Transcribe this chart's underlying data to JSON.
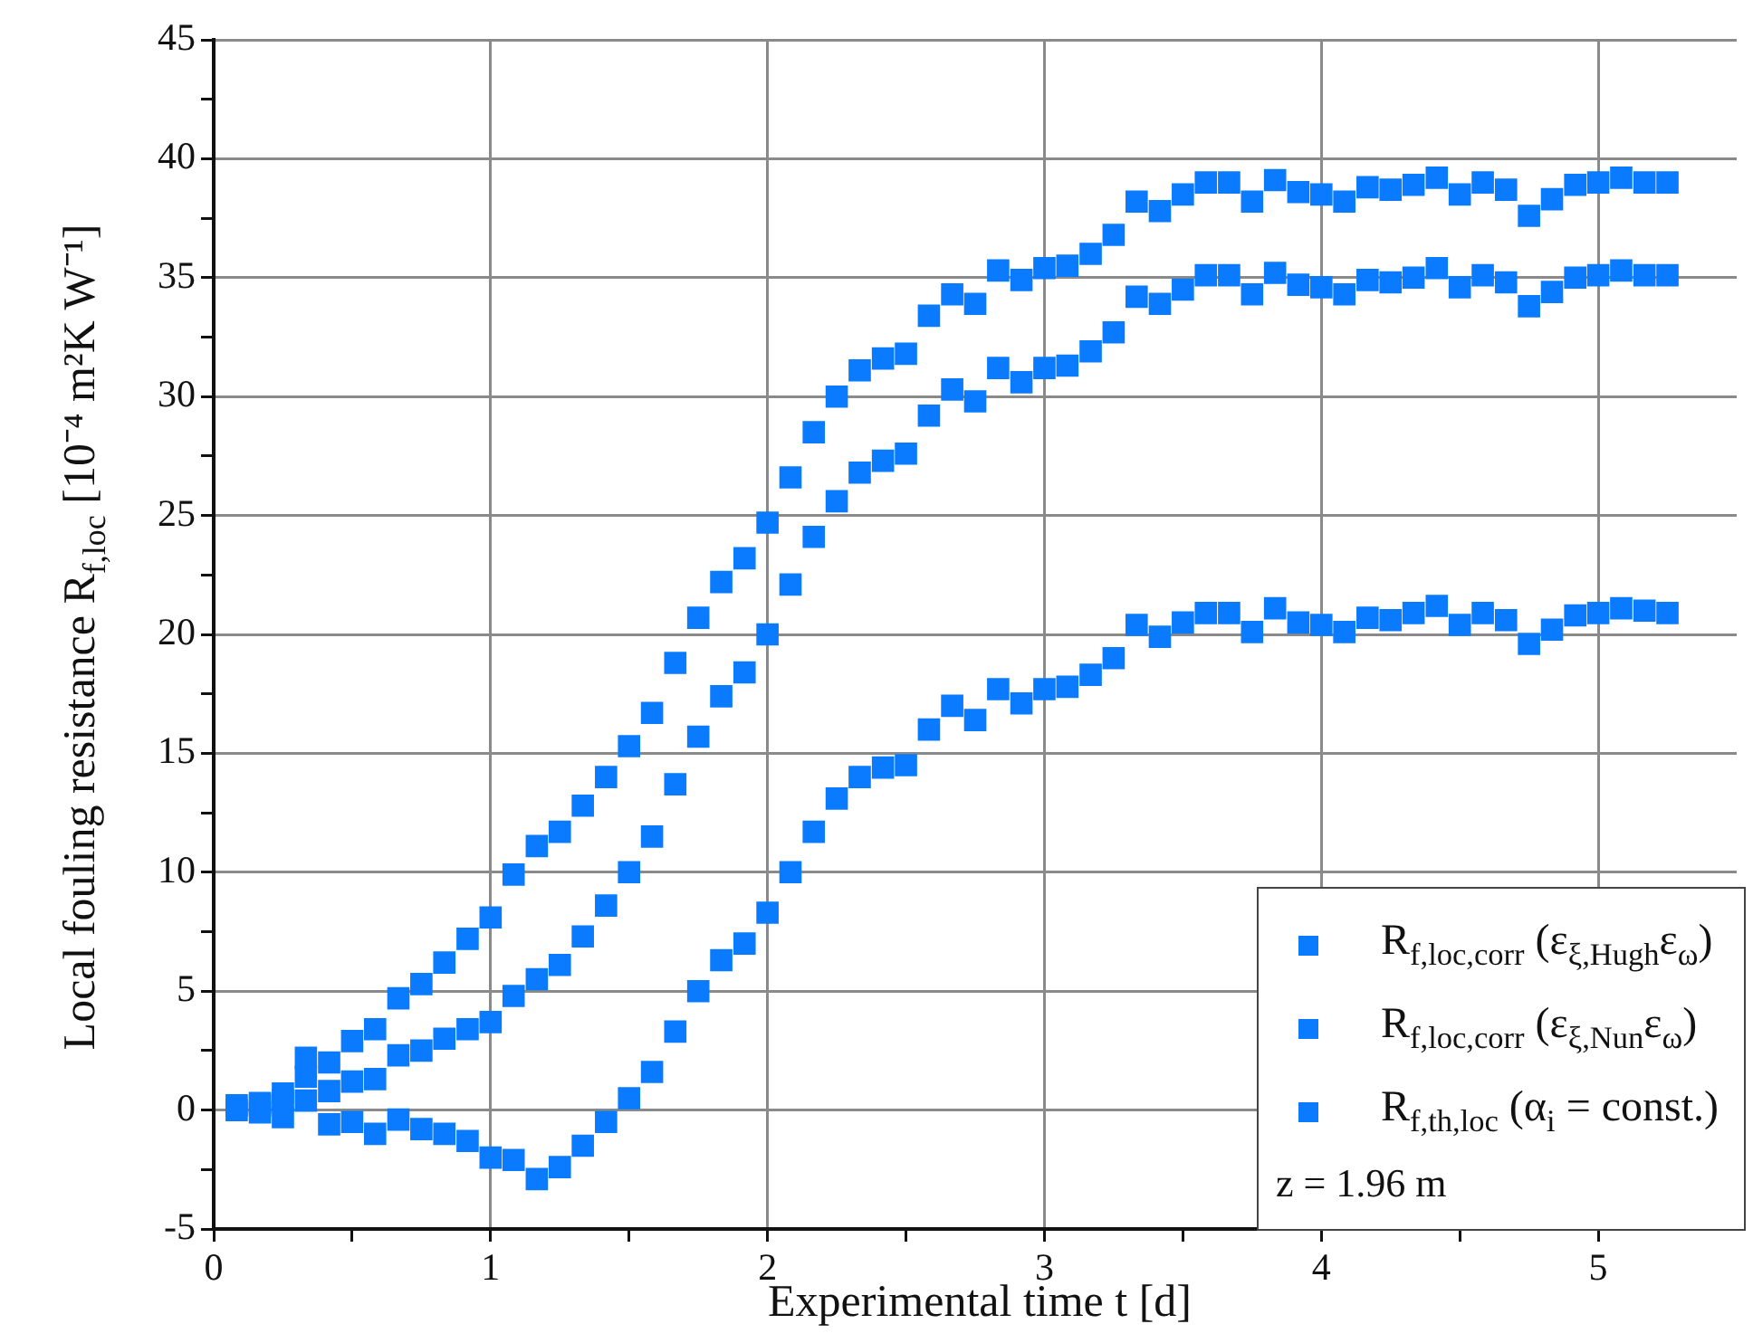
{
  "chart_data": {
    "type": "scatter",
    "xlabel": "Experimental time t [d]",
    "ylabel": "Local fouling resistance R$_{f,loc}$ [10⁻⁴ m²K W⁻¹]",
    "x": [
      0.083,
      0.167,
      0.25,
      0.333,
      0.417,
      0.5,
      0.583,
      0.667,
      0.75,
      0.833,
      0.917,
      1,
      1.083,
      1.167,
      1.25,
      1.333,
      1.417,
      1.5,
      1.583,
      1.667,
      1.75,
      1.833,
      1.917,
      2,
      2.083,
      2.167,
      2.25,
      2.333,
      2.417,
      2.5,
      2.583,
      2.667,
      2.75,
      2.833,
      2.917,
      3,
      3.083,
      3.167,
      3.25,
      3.333,
      3.417,
      3.5,
      3.583,
      3.667,
      3.75,
      3.833,
      3.917,
      4,
      4.083,
      4.167,
      4.25,
      4.333,
      4.417,
      4.5,
      4.583,
      4.667,
      4.75,
      4.833,
      4.917,
      5,
      5.083,
      5.167,
      5.25
    ],
    "series": [
      {
        "name": "R$_{f,loc,corr}$ (ε$_{ξ,Hugh}$ε$_{ω}$)",
        "color": "#0a7bff",
        "values": [
          0.2,
          0.3,
          0.7,
          2.2,
          2.0,
          2.9,
          3.4,
          4.7,
          5.3,
          6.2,
          7.2,
          8.1,
          9.9,
          11.1,
          11.7,
          12.8,
          14.0,
          15.3,
          16.7,
          18.8,
          20.7,
          22.2,
          23.2,
          24.7,
          26.6,
          28.5,
          30.0,
          31.1,
          31.6,
          31.8,
          33.4,
          34.3,
          33.9,
          35.3,
          34.9,
          35.4,
          35.5,
          36.0,
          36.8,
          38.2,
          37.8,
          38.5,
          39.0,
          39.0,
          38.2,
          39.1,
          38.6,
          38.5,
          38.2,
          38.8,
          38.7,
          38.9,
          39.2,
          38.5,
          39.0,
          38.7,
          37.6,
          38.3,
          38.9,
          39.0,
          39.2,
          39.0,
          39.0
        ]
      },
      {
        "name": "R$_{f,loc,corr}$ (ε$_{ξ,Nun}$ε$_{ω}$)",
        "color": "#0a7bff",
        "values": [
          null,
          0.2,
          0.4,
          1.4,
          0.8,
          1.2,
          1.3,
          2.3,
          2.5,
          3.0,
          3.4,
          3.7,
          4.8,
          5.5,
          6.1,
          7.3,
          8.6,
          10.0,
          11.5,
          13.7,
          15.7,
          17.4,
          18.4,
          20.0,
          22.1,
          24.1,
          25.6,
          26.8,
          27.3,
          27.6,
          29.2,
          30.3,
          29.8,
          31.2,
          30.6,
          31.2,
          31.3,
          31.9,
          32.7,
          34.2,
          33.9,
          34.5,
          35.1,
          35.1,
          34.3,
          35.2,
          34.7,
          34.6,
          34.3,
          34.9,
          34.8,
          35.0,
          35.4,
          34.6,
          35.1,
          34.8,
          33.8,
          34.4,
          35.0,
          35.1,
          35.3,
          35.1,
          35.1
        ]
      },
      {
        "name": "R$_{f,th,loc}$ (α$_{i}$ = const.)",
        "color": "#0a7bff",
        "values": [
          0.0,
          -0.1,
          -0.3,
          0.4,
          -0.6,
          -0.5,
          -1.0,
          -0.4,
          -0.8,
          -1.0,
          -1.3,
          -2.0,
          -2.1,
          -2.9,
          -2.4,
          -1.5,
          -0.5,
          0.5,
          1.6,
          3.3,
          5.0,
          6.3,
          7.0,
          8.3,
          10.0,
          11.7,
          13.1,
          14.0,
          14.4,
          14.5,
          16.0,
          17.0,
          16.4,
          17.7,
          17.1,
          17.7,
          17.8,
          18.3,
          19.0,
          20.4,
          19.9,
          20.5,
          20.9,
          20.9,
          20.1,
          21.1,
          20.5,
          20.4,
          20.1,
          20.7,
          20.6,
          20.9,
          21.2,
          20.4,
          20.9,
          20.6,
          19.6,
          20.2,
          20.8,
          20.9,
          21.1,
          21.0,
          20.9
        ]
      }
    ],
    "xlim": [
      0,
      5.5
    ],
    "xticks": [
      0,
      {
        "value": 0.5,
        "label": null
      },
      1,
      {
        "value": 1.5,
        "label": null
      },
      2,
      {
        "value": 2.5,
        "label": null
      },
      3,
      {
        "value": 3.5,
        "label": null
      },
      4,
      {
        "value": 4.5,
        "label": null
      },
      5
    ],
    "ylim": [
      -5,
      45
    ],
    "yticks": [
      -5,
      {
        "value": -2.5,
        "label": null
      },
      0,
      {
        "value": 2.5,
        "label": null
      },
      5,
      {
        "value": 7.5,
        "label": null
      },
      10,
      {
        "value": 12.5,
        "label": null
      },
      15,
      {
        "value": 17.5,
        "label": null
      },
      20,
      {
        "value": 22.5,
        "label": null
      },
      25,
      {
        "value": 27.5,
        "label": null
      },
      30,
      {
        "value": 32.5,
        "label": null
      },
      35,
      {
        "value": 37.5,
        "label": null
      },
      40,
      {
        "value": 42.5,
        "label": null
      },
      45
    ],
    "grid": true,
    "legend": "bottom right",
    "marker": "square",
    "annotations": [
      "z = 1.96 m"
    ]
  }
}
